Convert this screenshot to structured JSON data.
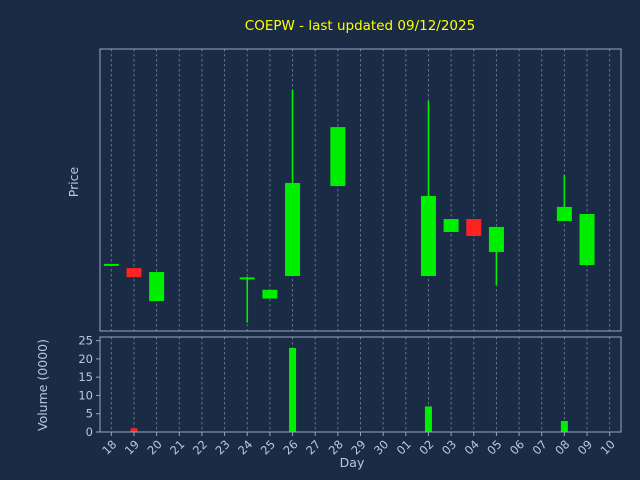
{
  "title": {
    "text": "COEPW - last updated 09/12/2025",
    "color": "#ffff00"
  },
  "axes": {
    "price_label": "Price",
    "volume_label": "Volume (0000)",
    "x_label": "Day"
  },
  "colors": {
    "background": "#1a2b45",
    "up": "#00ef00",
    "down": "#ff2222",
    "grid": "#8a97ab",
    "text": "#bcc8da",
    "border": "#9aa7bd"
  },
  "chart_data": {
    "type": "candlestick_with_volume",
    "x_categories": [
      "18",
      "19",
      "20",
      "21",
      "22",
      "23",
      "24",
      "25",
      "26",
      "27",
      "28",
      "29",
      "30",
      "01",
      "02",
      "03",
      "04",
      "05",
      "06",
      "07",
      "08",
      "09",
      "10"
    ],
    "xlabel": "Day",
    "price_axis": {
      "label": "Price",
      "range": [
        0,
        10
      ],
      "ticks_visible": false,
      "note": "price values estimated, no tick labels shown"
    },
    "volume_axis": {
      "label": "Volume (0000)",
      "range": [
        0,
        26
      ],
      "ticks": [
        0,
        5,
        10,
        15,
        20,
        25
      ]
    },
    "grid": "vertical-dashed",
    "candles": [
      {
        "day": "18",
        "open": 2.35,
        "high": 2.38,
        "low": 2.35,
        "close": 2.38,
        "color": "green"
      },
      {
        "day": "19",
        "open": 2.23,
        "high": 2.23,
        "low": 1.91,
        "close": 1.91,
        "color": "red"
      },
      {
        "day": "20",
        "open": 1.06,
        "high": 2.09,
        "low": 1.06,
        "close": 2.09,
        "color": "green"
      },
      {
        "day": "24",
        "open": 1.86,
        "high": 1.92,
        "low": 0.3,
        "close": 1.9,
        "color": "green"
      },
      {
        "day": "25",
        "open": 1.15,
        "high": 1.46,
        "low": 1.15,
        "close": 1.46,
        "color": "green"
      },
      {
        "day": "26",
        "open": 1.95,
        "high": 8.55,
        "low": 1.95,
        "close": 5.25,
        "color": "green"
      },
      {
        "day": "28",
        "open": 5.14,
        "high": 7.23,
        "low": 5.14,
        "close": 7.23,
        "color": "green"
      },
      {
        "day": "02",
        "open": 1.95,
        "high": 8.16,
        "low": 1.95,
        "close": 4.79,
        "color": "green"
      },
      {
        "day": "03",
        "open": 3.51,
        "high": 3.97,
        "low": 3.51,
        "close": 3.97,
        "color": "green"
      },
      {
        "day": "04",
        "open": 3.97,
        "high": 3.97,
        "low": 3.37,
        "close": 3.37,
        "color": "red"
      },
      {
        "day": "05",
        "open": 2.8,
        "high": 3.69,
        "low": 1.63,
        "close": 3.69,
        "color": "green"
      },
      {
        "day": "08",
        "open": 3.9,
        "high": 5.53,
        "low": 3.9,
        "close": 4.4,
        "color": "green"
      },
      {
        "day": "09",
        "open": 2.34,
        "high": 4.15,
        "low": 2.34,
        "close": 4.15,
        "color": "green"
      }
    ],
    "volumes": [
      {
        "day": "19",
        "value": 1,
        "color": "red"
      },
      {
        "day": "26",
        "value": 23,
        "color": "green"
      },
      {
        "day": "02",
        "value": 7,
        "color": "green"
      },
      {
        "day": "08",
        "value": 3,
        "color": "green"
      }
    ]
  }
}
